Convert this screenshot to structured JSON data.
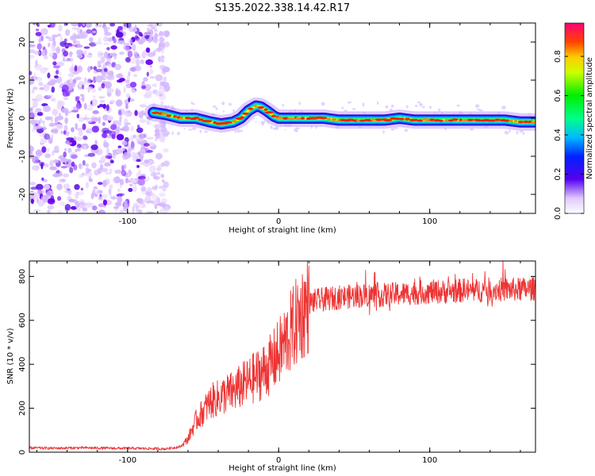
{
  "title": "S135.2022.338.14.42.R17",
  "chart_data": [
    {
      "type": "heatmap",
      "xlabel": "Height of straight line (km)",
      "ylabel": "Frequency (Hz)",
      "xlim": [
        -165,
        170
      ],
      "ylim": [
        -25,
        25
      ],
      "x_ticks": [
        -100,
        0,
        100
      ],
      "y_ticks": [
        -20,
        -10,
        0,
        10,
        20
      ],
      "colorbar": {
        "label": "Normalized spectral amplitude",
        "range": [
          0,
          0.97
        ],
        "ticks": [
          0.0,
          0.2,
          0.4,
          0.6,
          0.8
        ]
      },
      "noise_region_x": [
        -165,
        -80
      ],
      "signal_trace": {
        "x": [
          -83,
          -75,
          -65,
          -55,
          -45,
          -38,
          -30,
          -25,
          -20,
          -15,
          -12,
          -8,
          -3,
          0,
          10,
          20,
          30,
          40,
          50,
          60,
          70,
          80,
          90,
          100,
          110,
          120,
          130,
          140,
          150,
          160,
          170
        ],
        "frequency_hz": [
          1.5,
          1,
          0,
          0,
          -1,
          -1.5,
          -1,
          0,
          2,
          3.2,
          3,
          2,
          0.5,
          0,
          0,
          0,
          0,
          -0.5,
          -0.5,
          -0.5,
          -0.5,
          0,
          -0.5,
          -0.5,
          -0.5,
          -0.5,
          -0.5,
          -0.5,
          -0.5,
          -1,
          -1
        ]
      }
    },
    {
      "type": "line",
      "xlabel": "Height of straight line (km)",
      "ylabel": "SNR (10 * v/v)",
      "xlim": [
        -165,
        170
      ],
      "ylim": [
        0,
        870
      ],
      "x_ticks": [
        -100,
        0,
        100
      ],
      "y_ticks": [
        0,
        200,
        400,
        600,
        800
      ],
      "color": "#ee3333",
      "series": [
        {
          "x": [
            -165,
            -150,
            -130,
            -110,
            -90,
            -75,
            -65,
            -60,
            -55,
            -50,
            -45,
            -40,
            -35,
            -30,
            -25,
            -20,
            -15,
            -10,
            -5,
            0,
            5,
            10,
            15,
            20,
            25,
            30,
            40,
            50,
            60,
            70,
            80,
            90,
            100,
            110,
            120,
            130,
            140,
            150,
            160,
            170
          ],
          "values": [
            20,
            18,
            20,
            18,
            17,
            15,
            25,
            60,
            140,
            185,
            230,
            245,
            265,
            275,
            300,
            320,
            345,
            370,
            400,
            450,
            510,
            570,
            630,
            680,
            690,
            695,
            705,
            710,
            715,
            715,
            720,
            725,
            730,
            730,
            735,
            735,
            740,
            740,
            740,
            745
          ]
        }
      ]
    }
  ]
}
